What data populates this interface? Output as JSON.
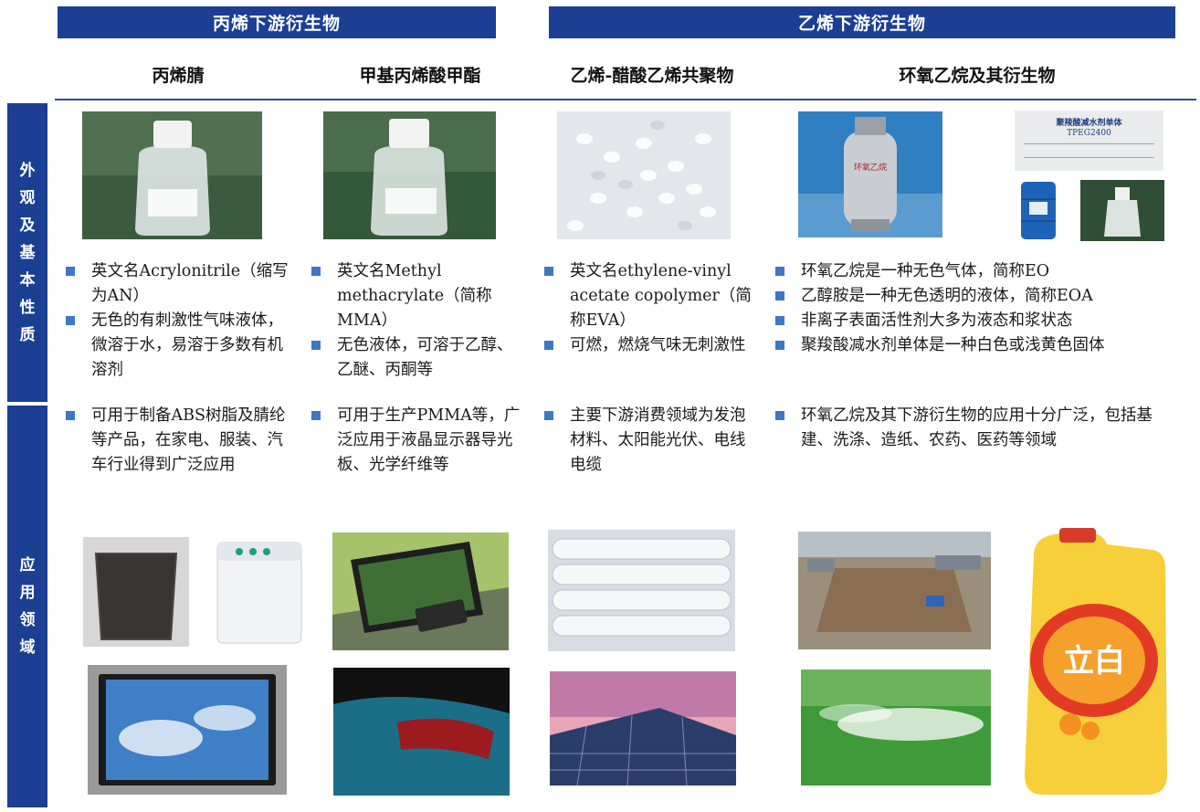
{
  "headers": {
    "propylene": "丙烯下游衍生物",
    "ethylene": "乙烯下游衍生物"
  },
  "columns": [
    {
      "title": "丙烯腈"
    },
    {
      "title": "甲基丙烯酸甲酯"
    },
    {
      "title": "乙烯-醋酸乙烯共聚物"
    },
    {
      "title": "环氧乙烷及其衍生物"
    }
  ],
  "row_labels": {
    "properties": [
      "外",
      "观",
      "及",
      "基",
      "本",
      "性",
      "质"
    ],
    "applications": [
      "应",
      "用",
      "领",
      "域"
    ]
  },
  "properties": [
    [
      "英文名Acrylonitrile（缩写为AN）",
      "无色的有刺激性气味液体，微溶于水，易溶于多数有机溶剂"
    ],
    [
      "英文名Methyl methacrylate（简称MMA）",
      "无色液体，可溶于乙醇、乙醚、丙酮等"
    ],
    [
      "英文名ethylene-vinyl acetate copolymer（简称EVA）",
      "可燃，燃烧气味无刺激性"
    ],
    [
      "环氧乙烷是一种无色气体，简称EO",
      "乙醇胺是一种无色透明的液体，简称EOA",
      "非离子表面活性剂大多为液态和浆状态",
      "聚羧酸减水剂单体是一种白色或浅黄色固体"
    ]
  ],
  "applications": [
    [
      "可用于制备ABS树脂及腈纶等产品，在家电、服装、汽车行业得到广泛应用"
    ],
    [
      "可用于生产PMMA等，广泛应用于液晶显示器导光板、光学纤维等"
    ],
    [
      "主要下游消费领域为发泡材料、太阳能光伏、电线电缆"
    ],
    [
      "环氧乙烷及其下游衍生物的应用十分广泛，包括基建、洗涤、造纸、农药、医药等领域"
    ]
  ],
  "image_labels": {
    "eo_cylinder": "环氧乙烷",
    "monomer_bag_title": "聚羧酸减水剂单体",
    "monomer_bag_code": "TPEG2400",
    "detergent_brand": "立白"
  },
  "colors": {
    "header_blue": "#1b3f93",
    "bullet_blue": "#3d78c5"
  }
}
